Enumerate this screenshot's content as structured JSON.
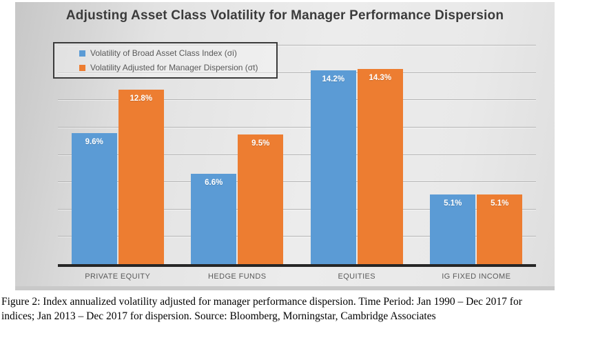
{
  "chart_data": {
    "type": "bar",
    "title": "Adjusting Asset Class Volatility for Manager Performance Dispersion",
    "categories": [
      "PRIVATE EQUITY",
      "HEDGE FUNDS",
      "EQUITIES",
      "IG FIXED INCOME"
    ],
    "series": [
      {
        "name": "Volatility of Broad Asset Class Index (σi)",
        "color": "#5B9BD5",
        "values": [
          9.6,
          6.6,
          14.2,
          5.1
        ],
        "labels": [
          "9.6%",
          "6.6%",
          "14.2%",
          "5.1%"
        ]
      },
      {
        "name": "Volatility Adjusted for Manager Dispersion (σt)",
        "color": "#ED7D31",
        "values": [
          12.8,
          9.5,
          14.3,
          5.1
        ],
        "labels": [
          "12.8%",
          "9.5%",
          "14.3%",
          "5.1%"
        ]
      }
    ],
    "xlabel": "",
    "ylabel": "",
    "ylim": [
      0,
      16
    ],
    "gridline_interval": 2,
    "grid": true,
    "legend_position": "top-left",
    "axis_line_color": "#262626",
    "value_label_color": "#ffffff"
  },
  "caption": {
    "line1": "Figure 2: Index annualized volatility adjusted for manager performance dispersion. Time Period: Jan 1990 – Dec 2017 for",
    "line2": "indices; Jan 2013 – Dec 2017 for dispersion. Source: Bloomberg, Morningstar, Cambridge Associates"
  }
}
